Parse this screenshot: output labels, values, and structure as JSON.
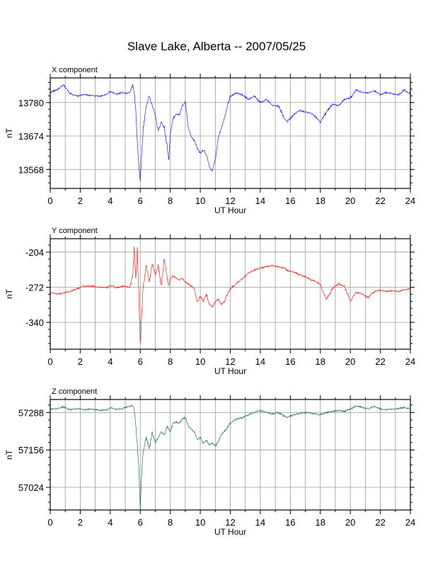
{
  "title": "Slave Lake, Alberta -- 2007/05/25",
  "chart_data": [
    {
      "type": "line",
      "panel_title": "X component",
      "xlabel": "UT Hour",
      "ylabel": "nT",
      "xlim": [
        0,
        24
      ],
      "ylim": [
        13508,
        13858
      ],
      "xticks": [
        0,
        2,
        4,
        6,
        8,
        10,
        12,
        14,
        16,
        18,
        20,
        22,
        24
      ],
      "yticks": [
        13780,
        13674,
        13568
      ],
      "grid": true,
      "color": "#0000ff",
      "x": [
        0,
        0.5,
        0.9,
        1.3,
        1.8,
        2.2,
        2.8,
        3.4,
        3.8,
        4.0,
        4.4,
        4.8,
        5.0,
        5.3,
        5.5,
        5.6,
        5.7,
        5.8,
        5.9,
        6.0,
        6.1,
        6.2,
        6.4,
        6.6,
        6.8,
        7.0,
        7.2,
        7.4,
        7.6,
        7.8,
        7.9,
        8.0,
        8.2,
        8.4,
        8.6,
        8.8,
        9.0,
        9.2,
        9.4,
        9.6,
        9.8,
        10.0,
        10.2,
        10.4,
        10.6,
        10.8,
        11.0,
        11.2,
        11.4,
        11.6,
        11.8,
        12.0,
        12.4,
        12.8,
        13.2,
        13.6,
        14.0,
        14.4,
        14.8,
        15.2,
        15.6,
        15.8,
        16.2,
        16.6,
        17.0,
        17.4,
        17.8,
        18.0,
        18.4,
        18.8,
        19.2,
        19.6,
        20.0,
        20.4,
        20.8,
        21.2,
        21.6,
        22.0,
        22.4,
        22.8,
        23.2,
        23.6,
        24.0
      ],
      "y": [
        13812,
        13822,
        13835,
        13810,
        13800,
        13805,
        13802,
        13800,
        13808,
        13815,
        13806,
        13812,
        13808,
        13812,
        13835,
        13810,
        13760,
        13660,
        13580,
        13535,
        13620,
        13700,
        13770,
        13800,
        13770,
        13740,
        13690,
        13720,
        13700,
        13640,
        13600,
        13680,
        13730,
        13745,
        13740,
        13770,
        13780,
        13700,
        13670,
        13660,
        13635,
        13620,
        13630,
        13615,
        13580,
        13560,
        13600,
        13670,
        13700,
        13730,
        13770,
        13800,
        13810,
        13805,
        13790,
        13800,
        13780,
        13790,
        13770,
        13770,
        13730,
        13720,
        13740,
        13755,
        13750,
        13745,
        13730,
        13718,
        13750,
        13775,
        13770,
        13790,
        13795,
        13820,
        13812,
        13810,
        13818,
        13805,
        13812,
        13808,
        13805,
        13820,
        13808
      ]
    },
    {
      "type": "line",
      "panel_title": "Y component",
      "xlabel": "UT Hour",
      "ylabel": "nT",
      "xlim": [
        0,
        24
      ],
      "ylim": [
        -392,
        -178
      ],
      "xticks": [
        0,
        2,
        4,
        6,
        8,
        10,
        12,
        14,
        16,
        18,
        20,
        22,
        24
      ],
      "yticks": [
        -204,
        -272,
        -340
      ],
      "grid": true,
      "color": "#ff0000",
      "x": [
        0,
        0.5,
        0.9,
        1.3,
        1.8,
        2.2,
        2.8,
        3.4,
        3.8,
        4.0,
        4.4,
        4.8,
        5.0,
        5.3,
        5.5,
        5.6,
        5.7,
        5.8,
        5.9,
        6.0,
        6.1,
        6.2,
        6.4,
        6.6,
        6.8,
        7.0,
        7.2,
        7.4,
        7.6,
        7.8,
        7.9,
        8.0,
        8.2,
        8.4,
        8.6,
        8.8,
        9.0,
        9.2,
        9.4,
        9.6,
        9.8,
        10.0,
        10.2,
        10.4,
        10.6,
        10.8,
        11.0,
        11.2,
        11.4,
        11.6,
        11.8,
        12.0,
        12.4,
        12.8,
        13.2,
        13.6,
        14.0,
        14.4,
        14.8,
        15.2,
        15.6,
        15.8,
        16.2,
        16.6,
        17.0,
        17.4,
        17.8,
        18.0,
        18.4,
        18.8,
        19.2,
        19.6,
        20.0,
        20.4,
        20.8,
        21.2,
        21.6,
        22.0,
        22.4,
        22.8,
        23.2,
        23.6,
        24.0
      ],
      "y": [
        -282,
        -285,
        -283,
        -280,
        -275,
        -270,
        -270,
        -272,
        -273,
        -268,
        -273,
        -270,
        -270,
        -272,
        -250,
        -190,
        -260,
        -200,
        -280,
        -380,
        -320,
        -270,
        -230,
        -260,
        -225,
        -250,
        -230,
        -270,
        -215,
        -255,
        -270,
        -255,
        -250,
        -255,
        -258,
        -255,
        -262,
        -265,
        -270,
        -275,
        -300,
        -290,
        -300,
        -285,
        -305,
        -310,
        -300,
        -295,
        -305,
        -300,
        -285,
        -275,
        -265,
        -255,
        -245,
        -238,
        -235,
        -232,
        -230,
        -232,
        -235,
        -240,
        -242,
        -248,
        -252,
        -258,
        -262,
        -268,
        -295,
        -275,
        -265,
        -270,
        -298,
        -282,
        -285,
        -292,
        -280,
        -278,
        -280,
        -279,
        -280,
        -277,
        -275
      ]
    },
    {
      "type": "line",
      "panel_title": "Z component",
      "xlabel": "UT Hour",
      "ylabel": "nT",
      "xlim": [
        0,
        24
      ],
      "ylim": [
        56944,
        57334
      ],
      "xticks": [
        0,
        2,
        4,
        6,
        8,
        10,
        12,
        14,
        16,
        18,
        20,
        22,
        24
      ],
      "yticks": [
        57288,
        57156,
        57024
      ],
      "grid": true,
      "color": "#006633",
      "x": [
        0,
        0.5,
        0.9,
        1.3,
        1.8,
        2.2,
        2.8,
        3.4,
        3.8,
        4.0,
        4.4,
        4.8,
        5.0,
        5.3,
        5.5,
        5.6,
        5.7,
        5.8,
        5.9,
        6.0,
        6.1,
        6.2,
        6.4,
        6.6,
        6.8,
        7.0,
        7.2,
        7.4,
        7.6,
        7.8,
        7.9,
        8.0,
        8.2,
        8.4,
        8.6,
        8.8,
        9.0,
        9.2,
        9.4,
        9.6,
        9.8,
        10.0,
        10.2,
        10.4,
        10.6,
        10.8,
        11.0,
        11.2,
        11.4,
        11.6,
        11.8,
        12.0,
        12.4,
        12.8,
        13.2,
        13.6,
        14.0,
        14.4,
        14.8,
        15.2,
        15.6,
        15.8,
        16.2,
        16.6,
        17.0,
        17.4,
        17.8,
        18.0,
        18.4,
        18.8,
        19.2,
        19.6,
        20.0,
        20.4,
        20.8,
        21.2,
        21.6,
        22.0,
        22.4,
        22.8,
        23.2,
        23.6,
        24.0
      ],
      "y": [
        57300,
        57302,
        57308,
        57298,
        57302,
        57298,
        57300,
        57296,
        57298,
        57305,
        57300,
        57302,
        57306,
        57310,
        57312,
        57300,
        57240,
        57180,
        57100,
        56950,
        57080,
        57150,
        57200,
        57160,
        57220,
        57180,
        57200,
        57220,
        57210,
        57240,
        57230,
        57220,
        57250,
        57255,
        57250,
        57265,
        57270,
        57240,
        57230,
        57220,
        57190,
        57200,
        57180,
        57190,
        57175,
        57180,
        57170,
        57185,
        57210,
        57220,
        57235,
        57250,
        57265,
        57270,
        57280,
        57290,
        57295,
        57290,
        57282,
        57288,
        57275,
        57270,
        57280,
        57285,
        57288,
        57285,
        57282,
        57280,
        57288,
        57292,
        57296,
        57292,
        57300,
        57312,
        57306,
        57300,
        57310,
        57300,
        57298,
        57300,
        57302,
        57306,
        57302
      ]
    }
  ]
}
